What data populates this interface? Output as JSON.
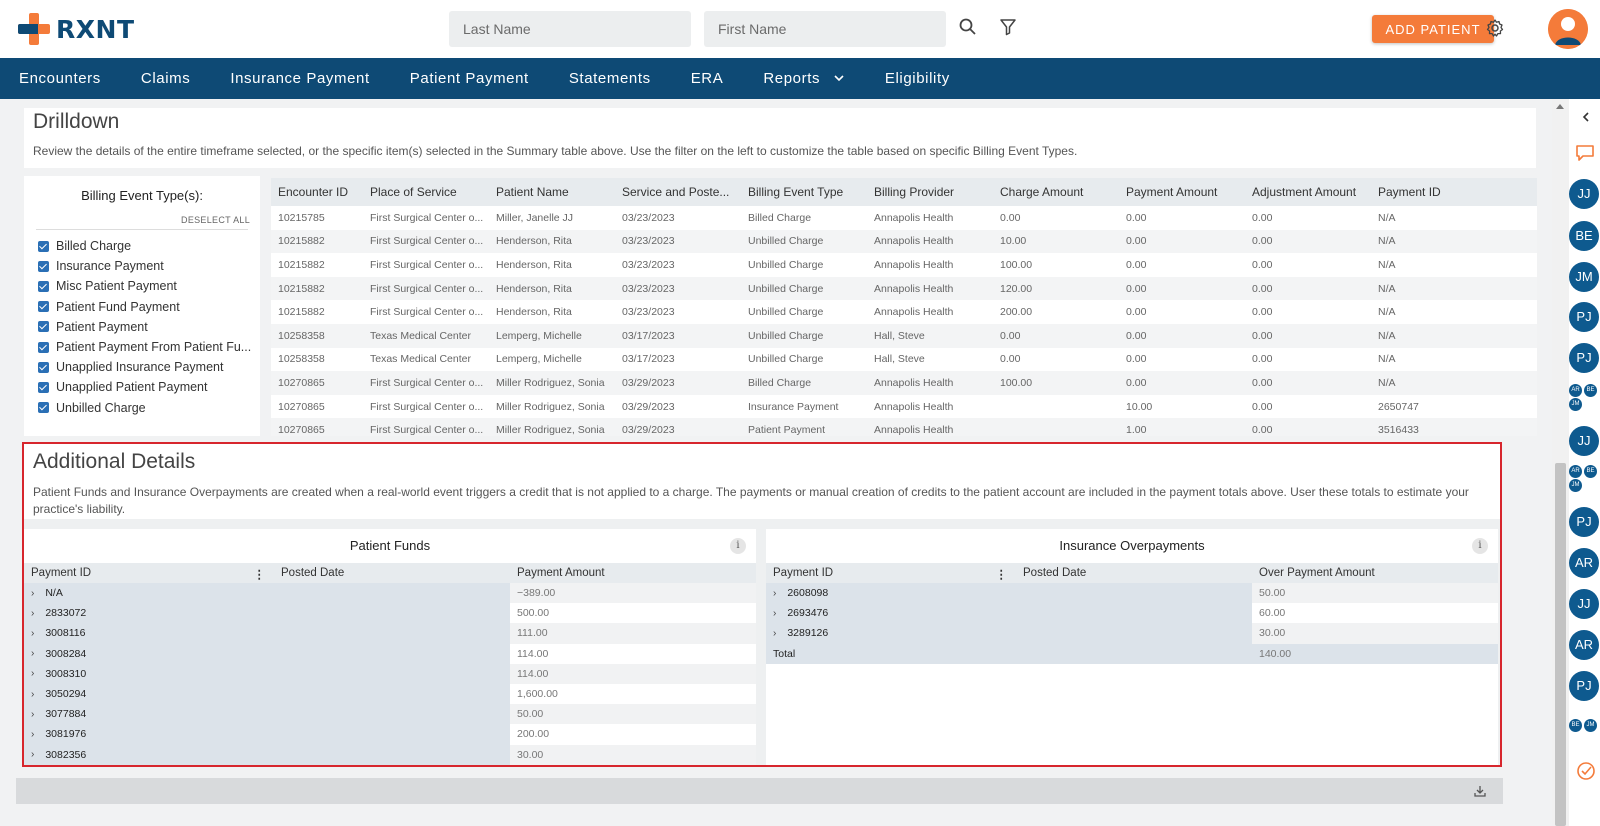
{
  "header": {
    "logo_text": "RXNT",
    "last_name_placeholder": "Last Name",
    "first_name_placeholder": "First Name",
    "add_patient_label": "ADD PATIENT"
  },
  "nav": {
    "items": [
      "Encounters",
      "Claims",
      "Insurance Payment",
      "Patient Payment",
      "Statements",
      "ERA",
      "Reports",
      "Eligibility"
    ]
  },
  "drilldown": {
    "title": "Drilldown",
    "description": "Review the details of the entire timeframe selected, or the specific item(s) selected in the Summary table above. Use the filter on the left to customize the table based on specific Billing Event Types."
  },
  "filter": {
    "title": "Billing Event Type(s):",
    "deselect_label": "DESELECT ALL",
    "options": [
      "Billed Charge",
      "Insurance Payment",
      "Misc Patient Payment",
      "Patient Fund Payment",
      "Patient Payment",
      "Patient Payment From Patient Fu...",
      "Unapplied Insurance Payment",
      "Unapplied Patient Payment",
      "Unbilled Charge"
    ]
  },
  "drill_table": {
    "columns": [
      "Encounter ID",
      "Place of Service",
      "Patient Name",
      "Service and Poste...",
      "Billing Event Type",
      "Billing Provider",
      "Charge Amount",
      "Payment Amount",
      "Adjustment Amount",
      "Payment ID"
    ],
    "rows": [
      [
        "10215785",
        "First Surgical Center o...",
        "Miller, Janelle JJ",
        "03/23/2023",
        "Billed Charge",
        "Annapolis Health",
        "0.00",
        "0.00",
        "0.00",
        "N/A"
      ],
      [
        "10215882",
        "First Surgical Center o...",
        "Henderson, Rita",
        "03/23/2023",
        "Unbilled Charge",
        "Annapolis Health",
        "10.00",
        "0.00",
        "0.00",
        "N/A"
      ],
      [
        "10215882",
        "First Surgical Center o...",
        "Henderson, Rita",
        "03/23/2023",
        "Unbilled Charge",
        "Annapolis Health",
        "100.00",
        "0.00",
        "0.00",
        "N/A"
      ],
      [
        "10215882",
        "First Surgical Center o...",
        "Henderson, Rita",
        "03/23/2023",
        "Unbilled Charge",
        "Annapolis Health",
        "120.00",
        "0.00",
        "0.00",
        "N/A"
      ],
      [
        "10215882",
        "First Surgical Center o...",
        "Henderson, Rita",
        "03/23/2023",
        "Unbilled Charge",
        "Annapolis Health",
        "200.00",
        "0.00",
        "0.00",
        "N/A"
      ],
      [
        "10258358",
        "Texas Medical Center",
        "Lemperg, Michelle",
        "03/17/2023",
        "Unbilled Charge",
        "Hall, Steve",
        "0.00",
        "0.00",
        "0.00",
        "N/A"
      ],
      [
        "10258358",
        "Texas Medical Center",
        "Lemperg, Michelle",
        "03/17/2023",
        "Unbilled Charge",
        "Hall, Steve",
        "0.00",
        "0.00",
        "0.00",
        "N/A"
      ],
      [
        "10270865",
        "First Surgical Center o...",
        "Miller Rodriguez, Sonia",
        "03/29/2023",
        "Billed Charge",
        "Annapolis Health",
        "100.00",
        "0.00",
        "0.00",
        "N/A"
      ],
      [
        "10270865",
        "First Surgical Center o...",
        "Miller Rodriguez, Sonia",
        "03/29/2023",
        "Insurance Payment",
        "Annapolis Health",
        "",
        "10.00",
        "0.00",
        "2650747"
      ],
      [
        "10270865",
        "First Surgical Center o...",
        "Miller Rodriguez, Sonia",
        "03/29/2023",
        "Patient Payment",
        "Annapolis Health",
        "",
        "1.00",
        "0.00",
        "3516433"
      ]
    ]
  },
  "additional": {
    "title": "Additional Details",
    "description": "Patient Funds and Insurance Overpayments are created when a real-world event triggers a credit that is not applied to a charge. The payments or manual creation of credits to the patient account are included in the payment totals above. User these totals to estimate your practice's liability."
  },
  "patient_funds": {
    "title": "Patient Funds",
    "info_label": "i",
    "columns": [
      "Payment ID",
      "Posted Date",
      "Payment Amount"
    ],
    "rows": [
      [
        "N/A",
        "",
        "−389.00"
      ],
      [
        "2833072",
        "",
        "500.00"
      ],
      [
        "3008116",
        "",
        "111.00"
      ],
      [
        "3008284",
        "",
        "114.00"
      ],
      [
        "3008310",
        "",
        "114.00"
      ],
      [
        "3050294",
        "",
        "1,600.00"
      ],
      [
        "3077884",
        "",
        "50.00"
      ],
      [
        "3081976",
        "",
        "200.00"
      ],
      [
        "3082356",
        "",
        "30.00"
      ]
    ]
  },
  "insurance_overpayments": {
    "title": "Insurance Overpayments",
    "info_label": "i",
    "columns": [
      "Payment ID",
      "Posted Date",
      "Over Payment Amount"
    ],
    "rows": [
      [
        "2608098",
        "",
        "50.00"
      ],
      [
        "2693476",
        "",
        "60.00"
      ],
      [
        "3289126",
        "",
        "30.00"
      ]
    ],
    "total_label": "Total",
    "total_value": "140.00"
  },
  "rail": {
    "badges": [
      "JJ",
      "BE",
      "JM",
      "PJ",
      "PJ",
      "JJ",
      "PJ",
      "AR",
      "JJ",
      "AR",
      "PJ"
    ],
    "mini_groups": [
      [
        "AR",
        "BE",
        "JM"
      ],
      [
        "AR",
        "BE",
        "JM"
      ],
      [
        "BE",
        "JM"
      ]
    ]
  },
  "colors": {
    "brand_navy": "#0e4a75",
    "brand_orange": "#f47b3a",
    "highlight_red": "#d7262d"
  }
}
